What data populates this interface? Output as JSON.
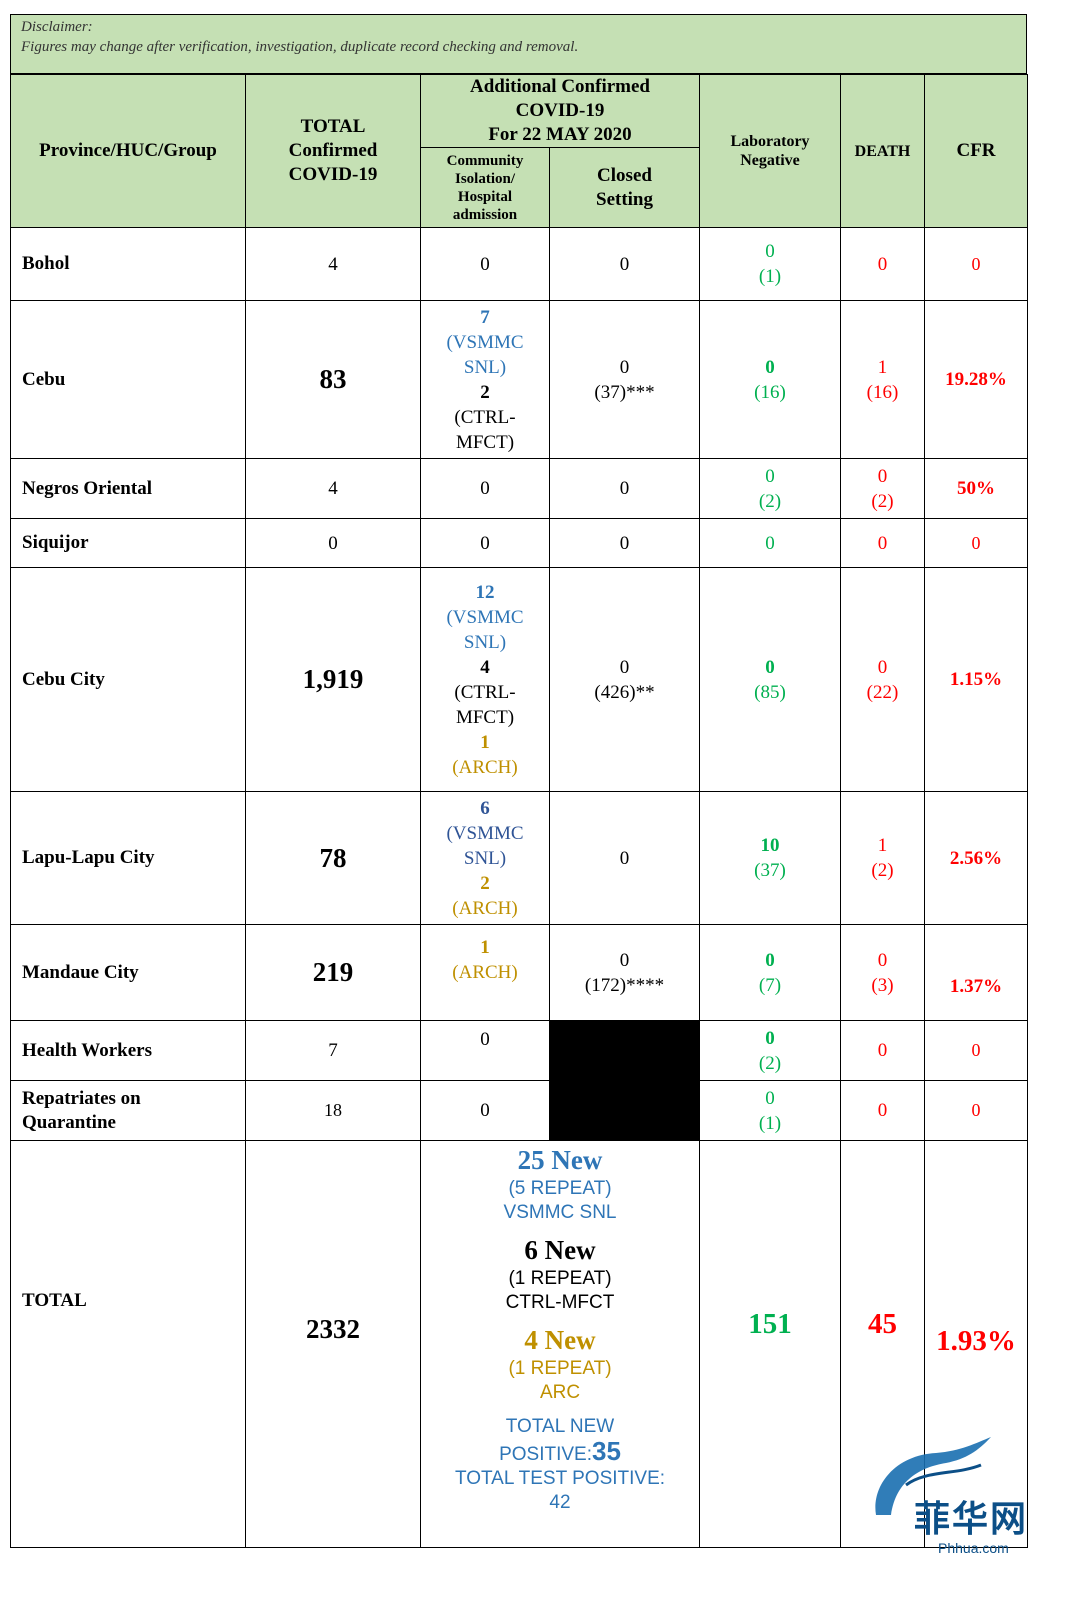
{
  "disclaimer": {
    "title": "Disclaimer:",
    "text": "Figures may change after verification, investigation, duplicate record checking and removal."
  },
  "header": {
    "province": "Province/HUC/Group",
    "total": [
      "TOTAL",
      "Confirmed",
      "COVID-19"
    ],
    "additional": [
      "Additional Confirmed",
      "COVID-19",
      "For 22 MAY 2020"
    ],
    "community": [
      "Community",
      "Isolation/",
      "Hospital",
      "admission"
    ],
    "closed": [
      "Closed",
      "Setting"
    ],
    "lab_negative": [
      "Laboratory",
      "Negative"
    ],
    "death": "DEATH",
    "cfr": "CFR"
  },
  "rows": {
    "bohol": {
      "name": "Bohol",
      "total": "4",
      "community": "0",
      "closed": "0",
      "neg": [
        "0",
        "(1)"
      ],
      "death": "0",
      "cfr": "0"
    },
    "cebu": {
      "name": "Cebu",
      "total": "83",
      "community": [
        "7",
        "(VSMMC",
        "SNL)",
        "2",
        "(CTRL-",
        "MFCT)"
      ],
      "closed": [
        "0",
        "(37)***"
      ],
      "neg": [
        "0",
        "(16)"
      ],
      "death": [
        "1",
        "(16)"
      ],
      "cfr": "19.28%"
    },
    "negros": {
      "name": "Negros Oriental",
      "total": "4",
      "community": "0",
      "closed": "0",
      "neg": [
        "0",
        "(2)"
      ],
      "death": [
        "0",
        "(2)"
      ],
      "cfr": "50%"
    },
    "siquijor": {
      "name": "Siquijor",
      "total": "0",
      "community": "0",
      "closed": "0",
      "neg": "0",
      "death": "0",
      "cfr": "0"
    },
    "cebu_city": {
      "name": "Cebu City",
      "total": "1,919",
      "community": [
        "12",
        "(VSMMC",
        "SNL)",
        "4",
        "(CTRL-",
        "MFCT)",
        "1",
        "(ARCH)"
      ],
      "closed": [
        "0",
        "(426)**"
      ],
      "neg": [
        "0",
        "(85)"
      ],
      "death": [
        "0",
        "(22)"
      ],
      "cfr": "1.15%"
    },
    "lapu": {
      "name": "Lapu-Lapu City",
      "total": "78",
      "community": [
        "6",
        "(VSMMC",
        "SNL)",
        "2",
        "(ARCH)"
      ],
      "closed": "0",
      "neg": [
        "10",
        "(37)"
      ],
      "death": [
        "1",
        "(2)"
      ],
      "cfr": "2.56%"
    },
    "mandaue": {
      "name": "Mandaue City",
      "total": "219",
      "community": [
        "1",
        "(ARCH)"
      ],
      "closed": [
        "0",
        "(172)****"
      ],
      "neg": [
        "0",
        "(7)"
      ],
      "death": [
        "0",
        "(3)"
      ],
      "cfr": "1.37%"
    },
    "health": {
      "name": "Health Workers",
      "total": "7",
      "community": "0",
      "neg": [
        "0",
        "(2)"
      ],
      "death": "0",
      "cfr": "0"
    },
    "repat": {
      "name": [
        "Repatriates on",
        "Quarantine"
      ],
      "total": "18",
      "community": "0",
      "neg": [
        "0",
        "(1)"
      ],
      "death": "0",
      "cfr": "0"
    }
  },
  "total": {
    "label": "TOTAL",
    "value": "2332",
    "vsmmc": [
      "25 New",
      "(5 REPEAT)",
      "VSMMC SNL"
    ],
    "ctrl": [
      "6 New",
      "(1 REPEAT)",
      "CTRL-MFCT"
    ],
    "arc": [
      "4 New",
      "(1 REPEAT)",
      "ARC"
    ],
    "total_new_label": [
      "TOTAL NEW",
      "POSITIVE:"
    ],
    "total_new_value": "35",
    "total_test_label": "TOTAL TEST POSITIVE:",
    "total_test_value": "42",
    "lab_negative": "151",
    "death": "45",
    "cfr": "1.93%"
  },
  "watermark": {
    "logo_text": "菲华网",
    "url": "Phhua.com"
  },
  "colors": {
    "header_bg": "#c5e0b4",
    "blue": "#2e75b6",
    "gold": "#bf9000",
    "green": "#00b050",
    "red": "#ff0000"
  }
}
